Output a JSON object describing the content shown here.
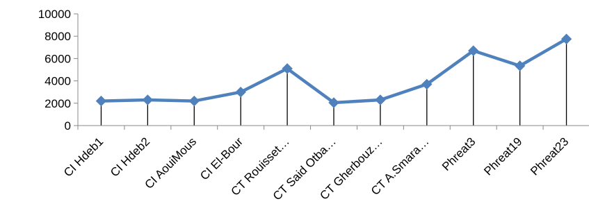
{
  "chart_data": {
    "type": "line",
    "title": "",
    "xlabel": "",
    "ylabel": "",
    "ylim": [
      0,
      10000
    ],
    "yticks": [
      "0",
      "2000",
      "4000",
      "6000",
      "8000",
      "10000"
    ],
    "categories": [
      "CI Hdeb1",
      "CI Hdeb2",
      "CI AouiMous",
      "CI El-Bour",
      "CT Rouisset…",
      "CT Said Otba…",
      "CT Gherbouz…",
      "CT A.Smara…",
      "Phreat3",
      "Phreat19",
      "Phreat23"
    ],
    "series": [
      {
        "values": [
          2200,
          2300,
          2200,
          3000,
          5100,
          2050,
          2300,
          3700,
          6700,
          5350,
          7750
        ]
      }
    ],
    "drop_lines": true,
    "marker": "diamond",
    "grid": false,
    "legend": "none",
    "colors": {
      "line": "#4F81BD",
      "axis": "#888888",
      "drop_line": "#000000"
    }
  }
}
